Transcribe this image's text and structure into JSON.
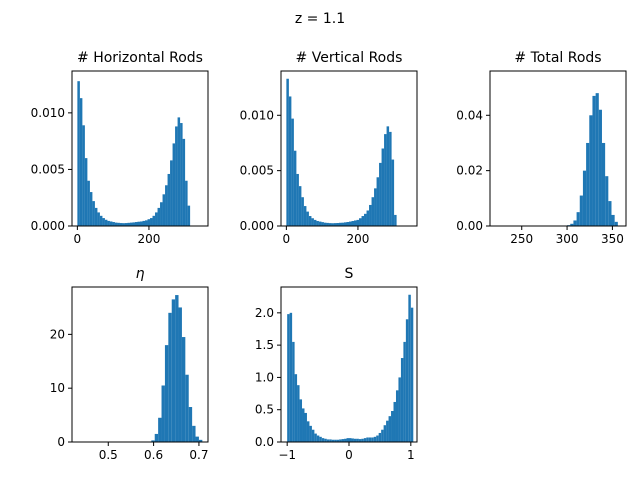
{
  "figure": {
    "suptitle": "z = 1.1",
    "bar_color": "#1f77b4"
  },
  "chart_data": [
    {
      "type": "bar",
      "title": "# Horizontal Rods",
      "xlim": [
        -15,
        365
      ],
      "ylim": [
        0,
        0.0137
      ],
      "bin_start": 0,
      "bin_width": 7,
      "xticks": [
        0,
        200
      ],
      "xtick_labels": [
        "0",
        "200"
      ],
      "yticks": [
        0.0,
        0.005,
        0.01
      ],
      "ytick_labels": [
        "0.000",
        "0.005",
        "0.010"
      ],
      "values": [
        0.0128,
        0.0113,
        0.0089,
        0.006,
        0.004,
        0.003,
        0.0022,
        0.0016,
        0.0012,
        0.0009,
        0.0007,
        0.00055,
        0.00045,
        0.0004,
        0.00035,
        0.0003,
        0.00028,
        0.00026,
        0.00025,
        0.00026,
        0.00028,
        0.0003,
        0.00032,
        0.00035,
        0.00038,
        0.0004,
        0.00045,
        0.0005,
        0.0006,
        0.0007,
        0.0009,
        0.0012,
        0.0016,
        0.0021,
        0.0028,
        0.0036,
        0.0046,
        0.0058,
        0.0073,
        0.0088,
        0.0096,
        0.0091,
        0.0077,
        0.004,
        0.0018
      ]
    },
    {
      "type": "bar",
      "title": "# Vertical Rods",
      "xlim": [
        -15,
        365
      ],
      "ylim": [
        0,
        0.014
      ],
      "bin_start": 0,
      "bin_width": 7,
      "xticks": [
        0,
        200
      ],
      "xtick_labels": [
        "0",
        "200"
      ],
      "yticks": [
        0.0,
        0.005,
        0.01
      ],
      "ytick_labels": [
        "0.000",
        "0.005",
        "0.010"
      ],
      "values": [
        0.0133,
        0.0117,
        0.0097,
        0.0068,
        0.0047,
        0.0036,
        0.0026,
        0.0018,
        0.0013,
        0.0009,
        0.0007,
        0.00055,
        0.00045,
        0.0004,
        0.00035,
        0.0003,
        0.00028,
        0.00026,
        0.00025,
        0.00026,
        0.00027,
        0.00029,
        0.0003,
        0.00033,
        0.00036,
        0.0004,
        0.00045,
        0.0005,
        0.00055,
        0.0007,
        0.0009,
        0.0011,
        0.0014,
        0.0019,
        0.0026,
        0.0034,
        0.0044,
        0.0057,
        0.007,
        0.0083,
        0.009,
        0.0085,
        0.006,
        0.001
      ]
    },
    {
      "type": "bar",
      "title": "# Total Rods",
      "xlim": [
        215,
        365
      ],
      "ylim": [
        0,
        0.056
      ],
      "bin_start": 300,
      "bin_width": 3.5,
      "xticks": [
        250,
        300,
        350
      ],
      "xtick_labels": [
        "250",
        "300",
        "350"
      ],
      "yticks": [
        0.0,
        0.02,
        0.04
      ],
      "ytick_labels": [
        "0.00",
        "0.02",
        "0.04"
      ],
      "values": [
        0.0003,
        0.0008,
        0.002,
        0.005,
        0.011,
        0.02,
        0.03,
        0.04,
        0.047,
        0.048,
        0.042,
        0.03,
        0.018,
        0.009,
        0.004,
        0.0015
      ]
    },
    {
      "type": "bar",
      "title": "η",
      "xlim": [
        0.42,
        0.72
      ],
      "ylim": [
        0,
        28.8
      ],
      "bin_start": 0.595,
      "bin_width": 0.0075,
      "xticks": [
        0.5,
        0.6,
        0.7
      ],
      "xtick_labels": [
        "0.5",
        "0.6",
        "0.7"
      ],
      "yticks": [
        0,
        10,
        20
      ],
      "ytick_labels": [
        "0",
        "10",
        "20"
      ],
      "values": [
        0.3,
        1.5,
        4.5,
        10.5,
        18.0,
        24.0,
        26.5,
        27.3,
        25.0,
        19.5,
        12.5,
        6.5,
        3.0,
        1.0,
        0.4
      ]
    },
    {
      "type": "bar",
      "title": "S",
      "xlim": [
        -1.1,
        1.1
      ],
      "ylim": [
        0,
        2.4
      ],
      "bin_start": -1.0,
      "bin_width": 0.04,
      "xticks": [
        -1,
        0,
        1
      ],
      "xtick_labels": [
        "−1",
        "0",
        "1"
      ],
      "yticks": [
        0.0,
        0.5,
        1.0,
        1.5,
        2.0
      ],
      "ytick_labels": [
        "0.0",
        "0.5",
        "1.0",
        "1.5",
        "2.0"
      ],
      "values": [
        1.98,
        2.0,
        1.55,
        1.05,
        0.88,
        0.66,
        0.52,
        0.45,
        0.32,
        0.25,
        0.19,
        0.13,
        0.1,
        0.08,
        0.06,
        0.05,
        0.04,
        0.04,
        0.035,
        0.035,
        0.035,
        0.04,
        0.045,
        0.05,
        0.06,
        0.06,
        0.055,
        0.05,
        0.05,
        0.045,
        0.05,
        0.06,
        0.07,
        0.07,
        0.07,
        0.08,
        0.1,
        0.14,
        0.19,
        0.26,
        0.33,
        0.4,
        0.48,
        0.62,
        0.8,
        1.0,
        1.3,
        1.55,
        1.9,
        2.28,
        2.08
      ]
    }
  ]
}
